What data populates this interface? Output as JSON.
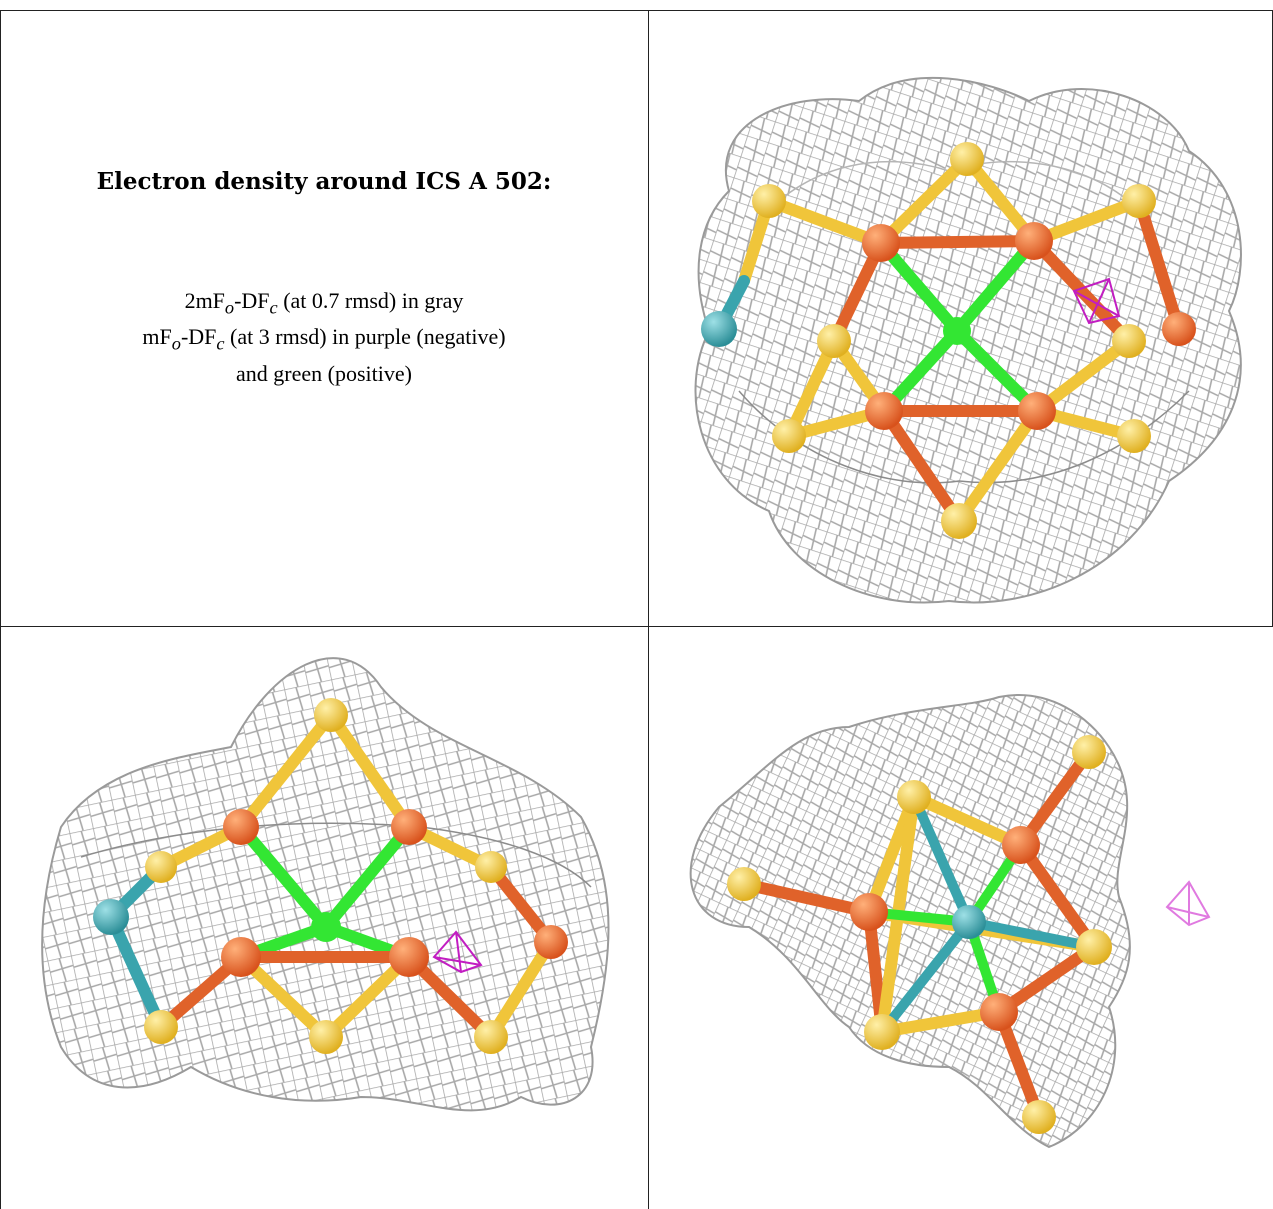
{
  "caption": {
    "title": "Electron density around ICS A 502:",
    "line1_pre": "2mF",
    "line1_sub1": "o",
    "line1_mid": "-DF",
    "line1_sub2": "c",
    "line1_post": " (at 0.7 rmsd) in gray",
    "line2_pre": "mF",
    "line2_sub1": "o",
    "line2_mid": "-DF",
    "line2_sub2": "c",
    "line2_post": " (at 3 rmsd) in purple (negative)",
    "line3": "and green (positive)"
  },
  "colors": {
    "mesh_gray": "#9a9a9a",
    "negative_purple": "#c21dc2",
    "positive_green": "#33e633",
    "iron_orange": "#e0622a",
    "sulfur_yellow": "#f0c53a",
    "carbon_teal": "#3aa4ad"
  },
  "panels": [
    {
      "view": "top-right"
    },
    {
      "view": "bottom-left"
    },
    {
      "view": "bottom-right"
    }
  ]
}
